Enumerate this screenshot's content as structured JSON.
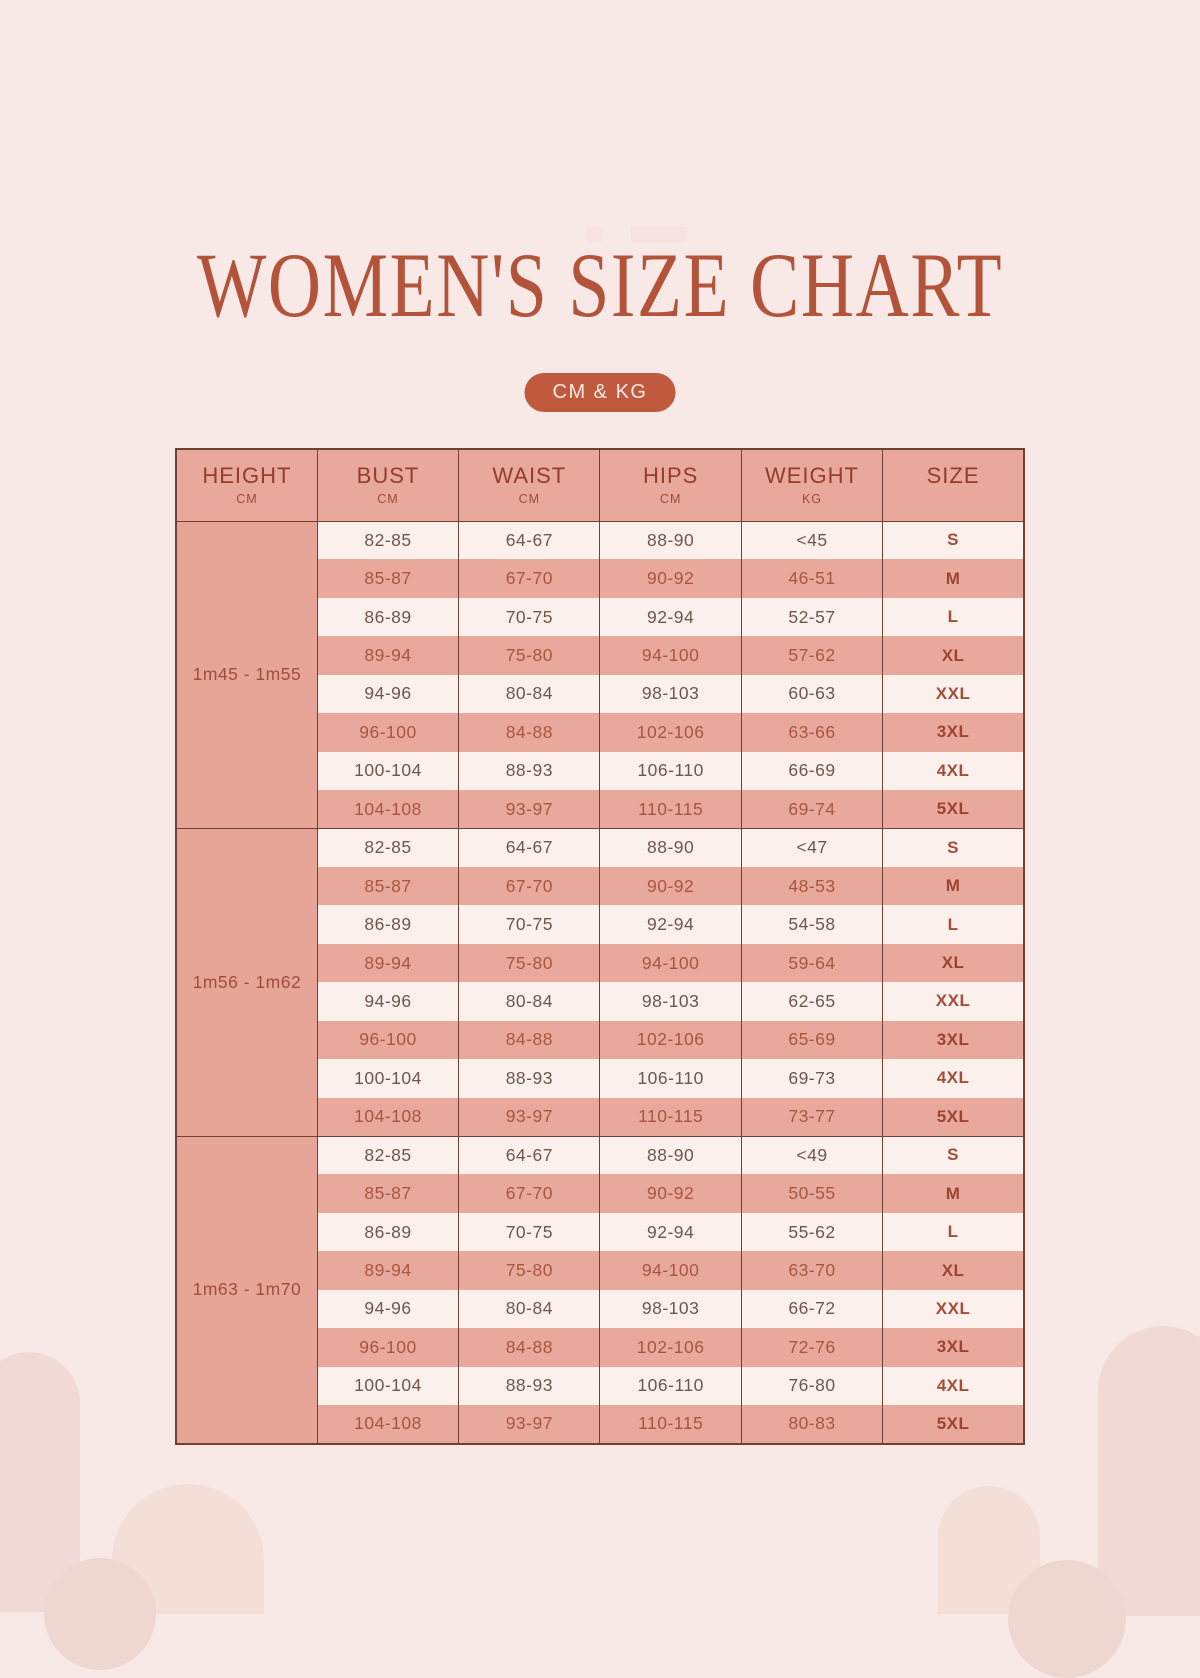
{
  "page": {
    "title": "WOMEN'S SIZE CHART",
    "badge_label": "CM & KG",
    "colors": {
      "background": "#f8e8e6",
      "accent_terracotta": "#b2533a",
      "badge_bg": "#bf5a3e",
      "rose_cell": "#e8a99c",
      "light_cell": "#fcf0ed",
      "table_border": "#6f4034"
    }
  },
  "table": {
    "columns": [
      {
        "label": "HEIGHT",
        "unit": "CM"
      },
      {
        "label": "BUST",
        "unit": "CM"
      },
      {
        "label": "WAIST",
        "unit": "CM"
      },
      {
        "label": "HIPS",
        "unit": "CM"
      },
      {
        "label": "WEIGHT",
        "unit": "KG"
      },
      {
        "label": "SIZE",
        "unit": ""
      }
    ],
    "groups": [
      {
        "height": "1m45 - 1m55",
        "rows": [
          [
            "82-85",
            "64-67",
            "88-90",
            "<45",
            "S"
          ],
          [
            "85-87",
            "67-70",
            "90-92",
            "46-51",
            "M"
          ],
          [
            "86-89",
            "70-75",
            "92-94",
            "52-57",
            "L"
          ],
          [
            "89-94",
            "75-80",
            "94-100",
            "57-62",
            "XL"
          ],
          [
            "94-96",
            "80-84",
            "98-103",
            "60-63",
            "XXL"
          ],
          [
            "96-100",
            "84-88",
            "102-106",
            "63-66",
            "3XL"
          ],
          [
            "100-104",
            "88-93",
            "106-110",
            "66-69",
            "4XL"
          ],
          [
            "104-108",
            "93-97",
            "110-115",
            "69-74",
            "5XL"
          ]
        ]
      },
      {
        "height": "1m56 - 1m62",
        "rows": [
          [
            "82-85",
            "64-67",
            "88-90",
            "<47",
            "S"
          ],
          [
            "85-87",
            "67-70",
            "90-92",
            "48-53",
            "M"
          ],
          [
            "86-89",
            "70-75",
            "92-94",
            "54-58",
            "L"
          ],
          [
            "89-94",
            "75-80",
            "94-100",
            "59-64",
            "XL"
          ],
          [
            "94-96",
            "80-84",
            "98-103",
            "62-65",
            "XXL"
          ],
          [
            "96-100",
            "84-88",
            "102-106",
            "65-69",
            "3XL"
          ],
          [
            "100-104",
            "88-93",
            "106-110",
            "69-73",
            "4XL"
          ],
          [
            "104-108",
            "93-97",
            "110-115",
            "73-77",
            "5XL"
          ]
        ]
      },
      {
        "height": "1m63 - 1m70",
        "rows": [
          [
            "82-85",
            "64-67",
            "88-90",
            "<49",
            "S"
          ],
          [
            "85-87",
            "67-70",
            "90-92",
            "50-55",
            "M"
          ],
          [
            "86-89",
            "70-75",
            "92-94",
            "55-62",
            "L"
          ],
          [
            "89-94",
            "75-80",
            "94-100",
            "63-70",
            "XL"
          ],
          [
            "94-96",
            "80-84",
            "98-103",
            "66-72",
            "XXL"
          ],
          [
            "96-100",
            "84-88",
            "102-106",
            "72-76",
            "3XL"
          ],
          [
            "100-104",
            "88-93",
            "106-110",
            "76-80",
            "4XL"
          ],
          [
            "104-108",
            "93-97",
            "110-115",
            "80-83",
            "5XL"
          ]
        ]
      }
    ]
  }
}
